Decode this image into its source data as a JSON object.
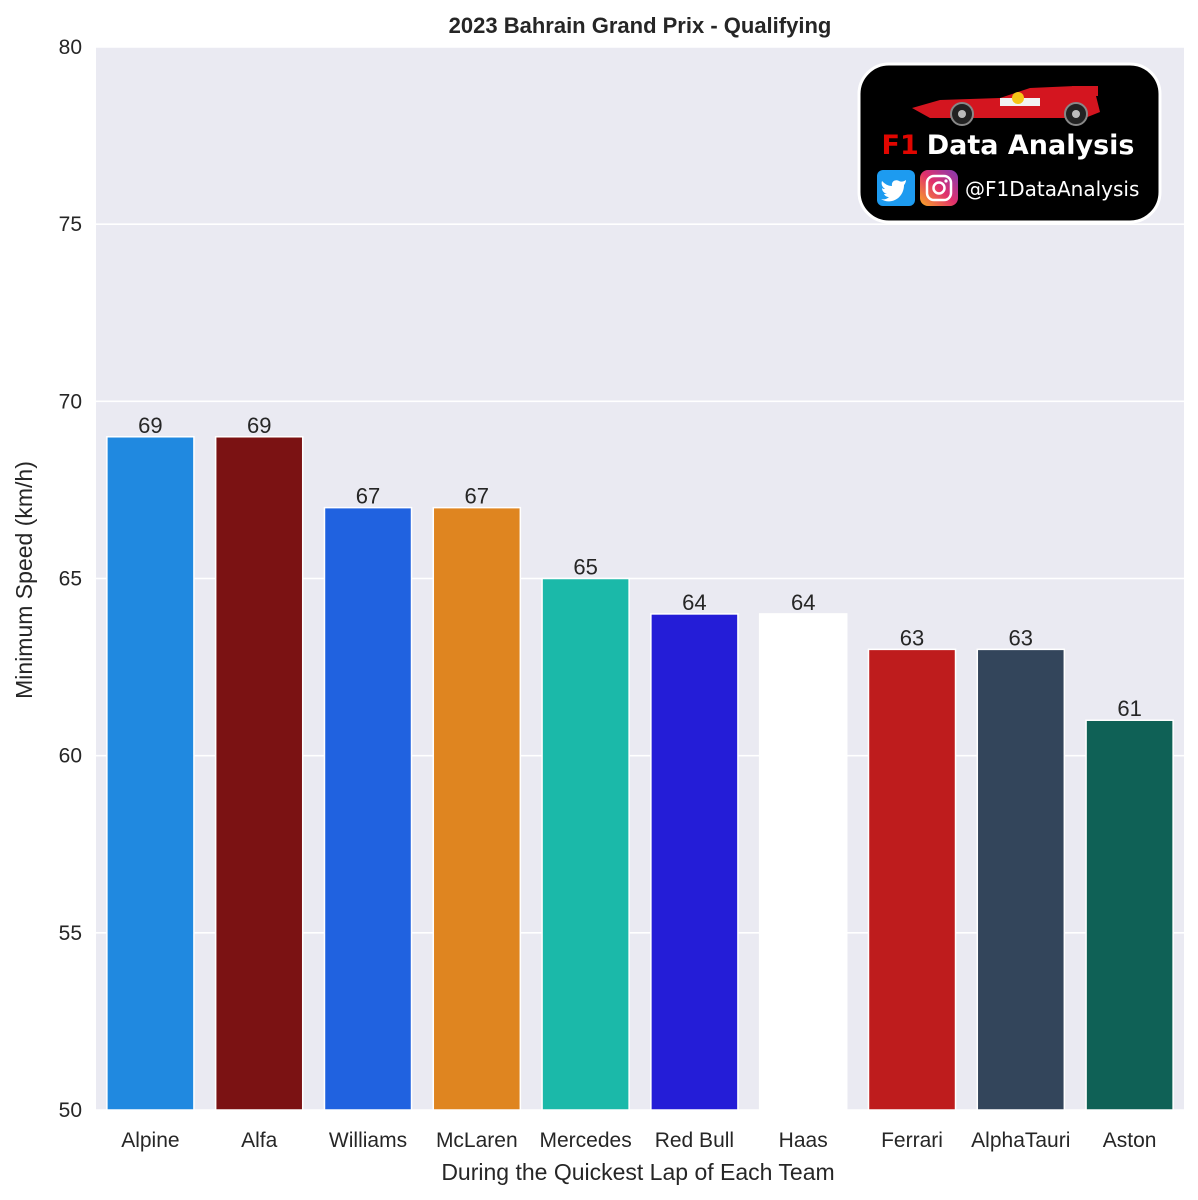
{
  "chart_data": {
    "type": "bar",
    "title": "2023 Bahrain Grand Prix - Qualifying",
    "xlabel": "During the Quickest Lap of Each Team",
    "ylabel": "Minimum Speed (km/h)",
    "ylim": [
      50,
      80
    ],
    "yticks": [
      50,
      55,
      60,
      65,
      70,
      75,
      80
    ],
    "grid": true,
    "categories": [
      "Alpine",
      "Alfa",
      "Williams",
      "McLaren",
      "Mercedes",
      "Red Bull",
      "Haas",
      "Ferrari",
      "AlphaTauri",
      "Aston"
    ],
    "values": [
      69,
      69,
      67,
      67,
      65,
      64,
      64,
      63,
      63,
      61
    ],
    "colors": [
      "#2089e0",
      "#7b1213",
      "#2062e0",
      "#df8520",
      "#1bb9a9",
      "#241dd7",
      "#ffffff",
      "#be1c1d",
      "#33455b",
      "#0f6156"
    ]
  },
  "logo": {
    "prefix": "F1",
    "name": "Data Analysis",
    "handle": "@F1DataAnalysis",
    "icons": [
      "twitter-icon",
      "instagram-icon",
      "f1-car-icon"
    ],
    "accent_color": "#e10600"
  }
}
